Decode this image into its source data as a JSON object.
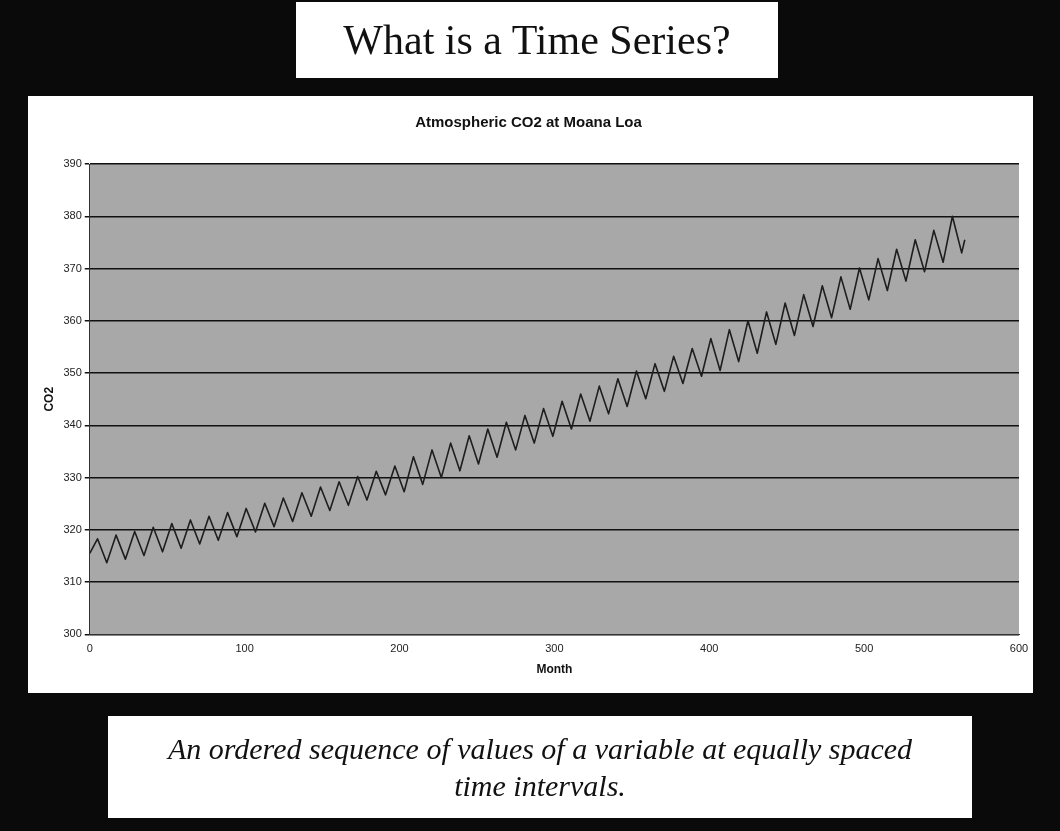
{
  "chart_data": {
    "type": "line",
    "title": "What is a Time Series?",
    "subtitle": "Atmospheric CO2 at Moana Loa",
    "xlabel": "Month",
    "ylabel": "CO2",
    "annotations": [
      "An ordered sequence of values of a variable at equally spaced time intervals."
    ],
    "x": [
      0,
      5,
      11,
      17,
      23,
      29,
      35,
      41,
      47,
      53,
      59,
      65,
      71,
      77,
      83,
      89,
      95,
      101,
      107,
      113,
      119,
      125,
      131,
      137,
      143,
      149,
      155,
      161,
      167,
      173,
      179,
      185,
      191,
      197,
      203,
      209,
      215,
      221,
      227,
      233,
      239,
      245,
      251,
      257,
      263,
      269,
      275,
      281,
      287,
      293,
      299,
      305,
      311,
      317,
      323,
      329,
      335,
      341,
      347,
      353,
      359,
      365,
      371,
      377,
      383,
      389,
      395,
      401,
      407,
      413,
      419,
      425,
      431,
      437,
      443,
      449,
      455,
      461,
      467,
      473,
      479,
      485,
      491,
      497,
      503,
      509,
      515,
      521,
      527,
      533,
      539,
      545,
      551,
      557,
      563,
      565
    ],
    "series": [
      {
        "color": "#1e1e1e",
        "values": [
          315.5,
          318.3,
          313.7,
          319.0,
          314.4,
          319.7,
          315.1,
          320.5,
          315.8,
          321.2,
          316.5,
          321.9,
          317.3,
          322.6,
          318.0,
          323.3,
          318.7,
          324.1,
          319.6,
          325.1,
          320.6,
          326.1,
          321.6,
          327.1,
          322.6,
          328.2,
          323.7,
          329.2,
          324.7,
          330.2,
          325.7,
          331.2,
          326.7,
          332.2,
          327.3,
          334.0,
          328.7,
          335.3,
          330.0,
          336.6,
          331.3,
          338.0,
          332.6,
          339.3,
          333.9,
          340.6,
          335.3,
          341.9,
          336.6,
          343.2,
          337.9,
          344.6,
          339.3,
          346.0,
          340.8,
          347.5,
          342.2,
          348.9,
          343.6,
          350.4,
          345.1,
          351.8,
          346.5,
          353.2,
          348.0,
          354.7,
          349.4,
          356.6,
          350.5,
          358.3,
          352.2,
          360.0,
          353.8,
          361.7,
          355.5,
          363.4,
          357.2,
          365.0,
          358.9,
          366.7,
          360.6,
          368.4,
          362.2,
          370.1,
          364.0,
          371.9,
          365.8,
          373.7,
          367.6,
          375.5,
          369.4,
          377.3,
          371.2,
          380.0,
          373.0,
          375.5
        ]
      }
    ],
    "xlim": [
      0,
      600
    ],
    "xticks": [
      0,
      100,
      200,
      300,
      400,
      500,
      600
    ],
    "ylim": [
      300,
      390
    ],
    "yticks": [
      300,
      310,
      320,
      330,
      340,
      350,
      360,
      370,
      380,
      390
    ],
    "grid": "y",
    "legend": false,
    "marker": "none",
    "line_style": "solid"
  }
}
